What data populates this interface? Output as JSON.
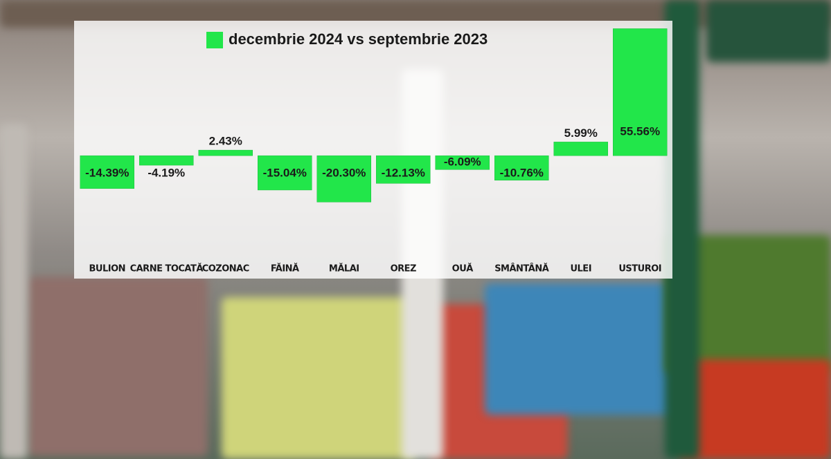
{
  "chart_data": {
    "type": "bar",
    "categories": [
      "BULION",
      "CARNE TOCATĂ",
      "COZONAC",
      "FĂINĂ",
      "MĂLAI",
      "OREZ",
      "OUĂ",
      "SMÂNTÂNĂ",
      "ULEI",
      "USTUROI"
    ],
    "series": [
      {
        "name": "decembrie 2024 vs septembrie 2023",
        "color": "#22e64a",
        "values": [
          -14.39,
          -4.19,
          2.43,
          -15.04,
          -20.3,
          -12.13,
          -6.09,
          -10.76,
          5.99,
          55.56
        ],
        "value_labels": [
          "-14.39%",
          "-4.19%",
          "2.43%",
          "-15.04%",
          "-20.30%",
          "-12.13%",
          "-6.09%",
          "-10.76%",
          "5.99%",
          "55.56%"
        ]
      }
    ],
    "ylim": [
      -45,
      56
    ]
  }
}
